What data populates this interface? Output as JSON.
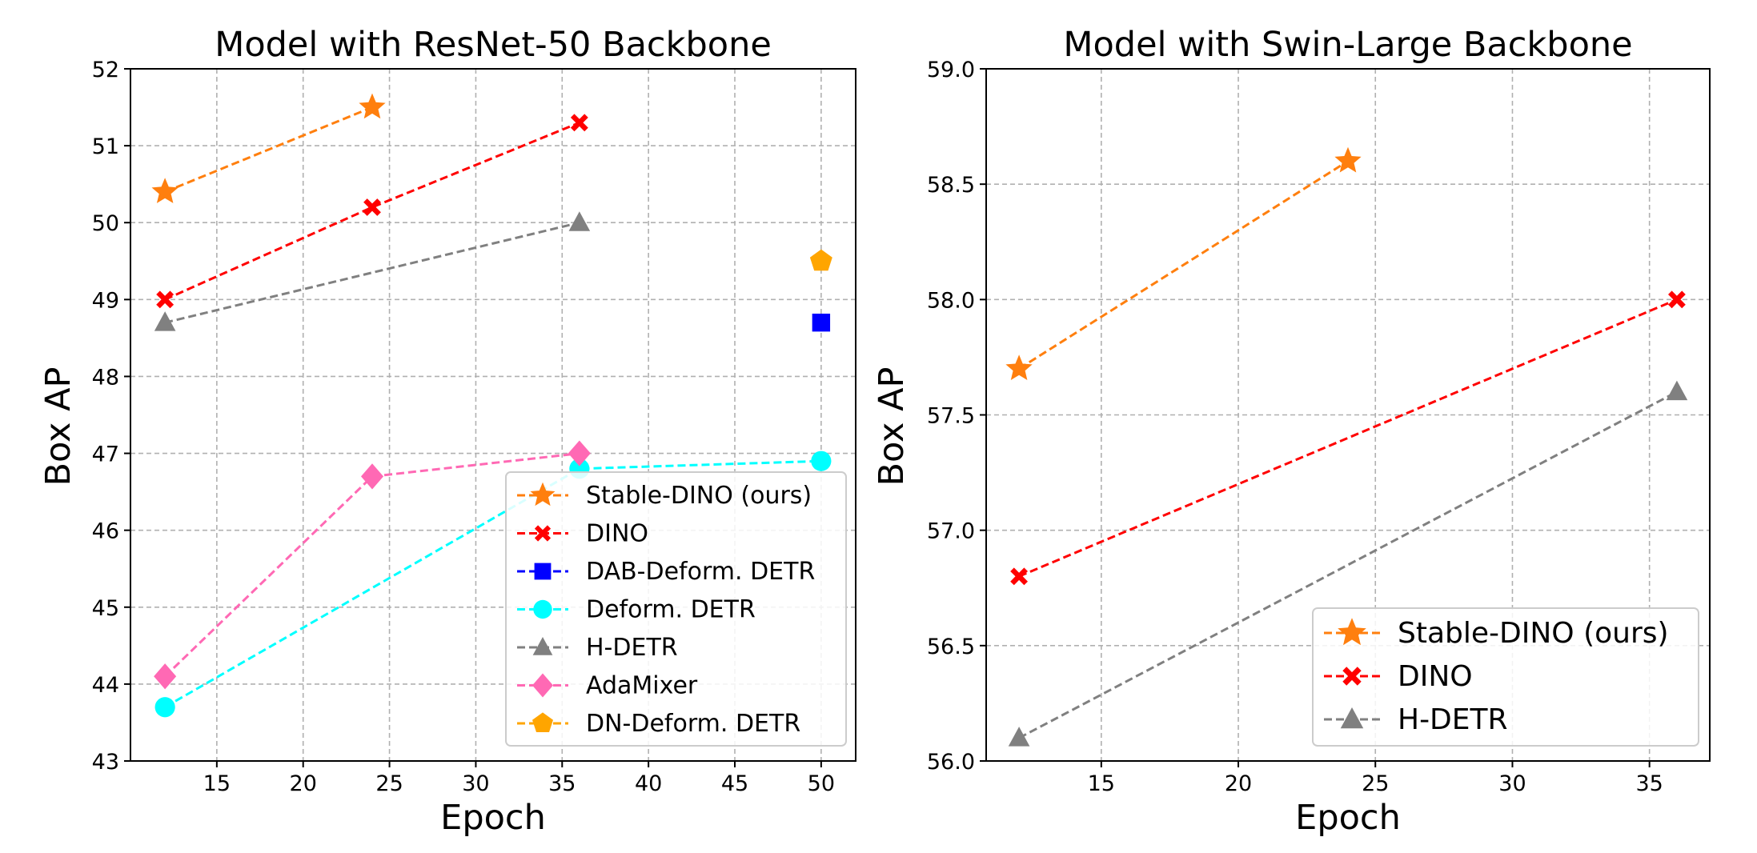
{
  "chart_data": [
    {
      "type": "line",
      "title": "Model with ResNet-50 Backbone",
      "xlabel": "Epoch",
      "ylabel": "Box AP",
      "xlim": [
        10,
        52
      ],
      "ylim": [
        43,
        52
      ],
      "xticks": [
        15,
        20,
        25,
        30,
        35,
        40,
        45,
        50
      ],
      "yticks": [
        43,
        44,
        45,
        46,
        47,
        48,
        49,
        50,
        51,
        52
      ],
      "grid": true,
      "legend_position": "lower-right",
      "series": [
        {
          "name": "Stable-DINO (ours)",
          "color": "#ff7f0e",
          "marker": "star",
          "x": [
            12,
            24
          ],
          "y": [
            50.4,
            51.5
          ]
        },
        {
          "name": "DINO",
          "color": "#ff0000",
          "marker": "x-filled",
          "x": [
            12,
            24,
            36
          ],
          "y": [
            49.0,
            50.2,
            51.3
          ]
        },
        {
          "name": "DAB-Deform. DETR",
          "color": "#0000ff",
          "marker": "square",
          "x": [
            50
          ],
          "y": [
            48.7
          ]
        },
        {
          "name": "Deform. DETR",
          "color": "#00ffff",
          "marker": "circle",
          "x": [
            12,
            36,
            50
          ],
          "y": [
            43.7,
            46.8,
            46.9
          ]
        },
        {
          "name": "H-DETR",
          "color": "#808080",
          "marker": "triangle",
          "x": [
            12,
            36
          ],
          "y": [
            48.7,
            50.0
          ]
        },
        {
          "name": "AdaMixer",
          "color": "#ff69b4",
          "marker": "diamond",
          "x": [
            12,
            24,
            36
          ],
          "y": [
            44.1,
            46.7,
            47.0
          ]
        },
        {
          "name": "DN-Deform. DETR",
          "color": "#ffa500",
          "marker": "pentagon",
          "x": [
            50
          ],
          "y": [
            49.5
          ]
        }
      ]
    },
    {
      "type": "line",
      "title": "Model with Swin-Large Backbone",
      "xlabel": "Epoch",
      "ylabel": "Box AP",
      "xlim": [
        10.8,
        37.2
      ],
      "ylim": [
        56.0,
        59.0
      ],
      "xticks": [
        15,
        20,
        25,
        30,
        35
      ],
      "yticks": [
        56.0,
        56.5,
        57.0,
        57.5,
        58.0,
        58.5,
        59.0
      ],
      "grid": true,
      "legend_position": "lower-right",
      "series": [
        {
          "name": "Stable-DINO (ours)",
          "color": "#ff7f0e",
          "marker": "star",
          "x": [
            12,
            24
          ],
          "y": [
            57.7,
            58.6
          ]
        },
        {
          "name": "DINO",
          "color": "#ff0000",
          "marker": "x-filled",
          "x": [
            12,
            36
          ],
          "y": [
            56.8,
            58.0
          ]
        },
        {
          "name": "H-DETR",
          "color": "#808080",
          "marker": "triangle",
          "x": [
            12,
            36
          ],
          "y": [
            56.1,
            57.6
          ]
        }
      ]
    }
  ]
}
